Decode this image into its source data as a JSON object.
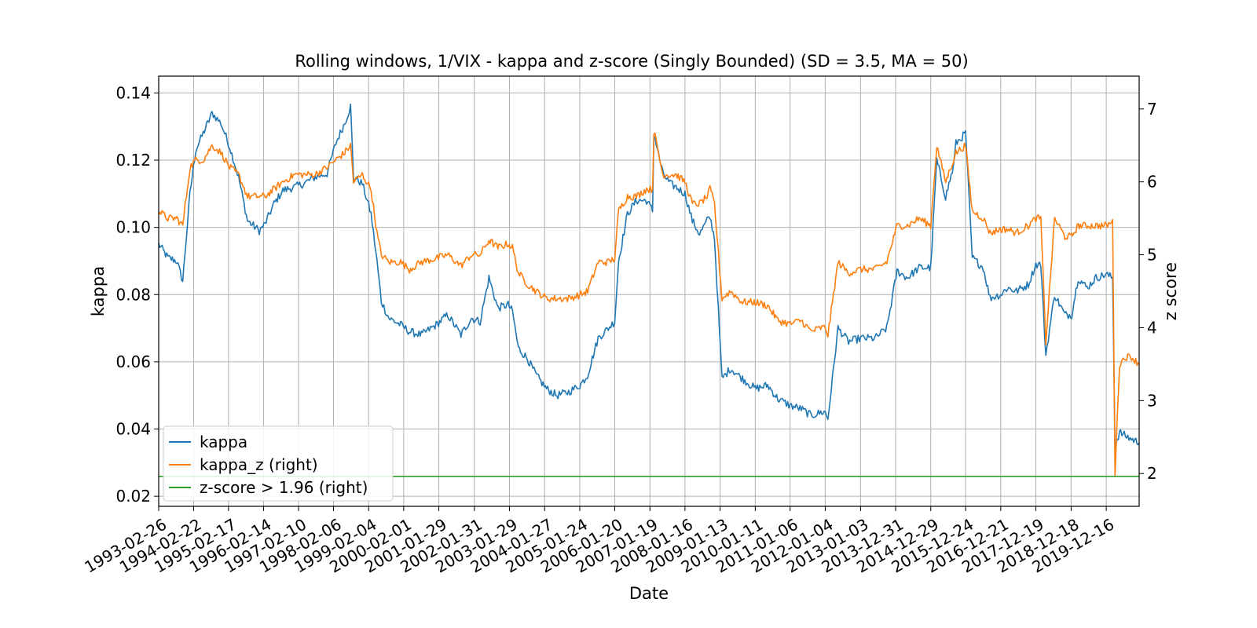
{
  "chart_data": {
    "type": "line",
    "title": "Rolling windows, 1/VIX - kappa and z-score (Singly Bounded) (SD = 3.5, MA = 50)",
    "xlabel": "Date",
    "ylabel": "kappa",
    "ylabel_right": "z score",
    "x_ticks": [
      "1993-02-26",
      "1994-02-22",
      "1995-02-17",
      "1996-02-14",
      "1997-02-10",
      "1998-02-06",
      "1999-02-04",
      "2000-02-01",
      "2001-01-29",
      "2002-01-31",
      "2003-01-29",
      "2004-01-27",
      "2005-01-24",
      "2006-01-20",
      "2007-01-19",
      "2008-01-16",
      "2009-01-13",
      "2010-01-11",
      "2011-01-06",
      "2012-01-04",
      "2013-01-03",
      "2013-12-31",
      "2014-12-29",
      "2015-12-24",
      "2016-12-21",
      "2017-12-19",
      "2018-12-18",
      "2019-12-16"
    ],
    "y_ticks_left": [
      "0.02",
      "0.04",
      "0.06",
      "0.08",
      "0.10",
      "0.12",
      "0.14"
    ],
    "y_ticks_right": [
      "2",
      "3",
      "4",
      "5",
      "6",
      "7"
    ],
    "ylim_left": [
      0.017,
      0.145
    ],
    "ylim_right": [
      1.55,
      7.45
    ],
    "x_range": [
      "1993-02-26",
      "2020-11-20"
    ],
    "grid": true,
    "legend_position": "lower-left",
    "series": [
      {
        "name": "kappa",
        "axis": "left",
        "color": "#1f77b4",
        "x": [
          "1993-02-26",
          "1993-06-01",
          "1993-09-01",
          "1993-11-01",
          "1994-01-15",
          "1994-03-15",
          "1994-06-01",
          "1994-09-01",
          "1994-12-01",
          "1995-03-01",
          "1995-06-01",
          "1995-09-01",
          "1996-01-01",
          "1996-03-01",
          "1996-06-01",
          "1996-09-01",
          "1997-01-01",
          "1997-04-01",
          "1997-08-01",
          "1997-12-01",
          "1998-03-01",
          "1998-06-01",
          "1998-08-01",
          "1998-09-01",
          "1998-12-01",
          "1999-03-01",
          "1999-05-01",
          "1999-06-15",
          "1999-09-01",
          "2000-01-01",
          "2000-04-01",
          "2000-08-01",
          "2001-01-01",
          "2001-05-01",
          "2001-09-15",
          "2002-01-01",
          "2002-04-01",
          "2002-07-01",
          "2002-10-01",
          "2003-01-15",
          "2003-03-01",
          "2003-05-01",
          "2003-08-01",
          "2003-11-01",
          "2004-02-15",
          "2004-06-01",
          "2004-10-01",
          "2005-01-24",
          "2005-04-15",
          "2005-08-01",
          "2005-11-15",
          "2006-01-20",
          "2006-03-01",
          "2006-06-01",
          "2006-09-01",
          "2006-12-15",
          "2007-02-15",
          "2007-03-01",
          "2007-06-01",
          "2007-08-15",
          "2007-10-15",
          "2008-01-16",
          "2008-04-01",
          "2008-06-15",
          "2008-09-01",
          "2008-10-01",
          "2008-11-15",
          "2009-02-01",
          "2009-05-01",
          "2009-09-01",
          "2010-01-11",
          "2010-05-20",
          "2010-09-01",
          "2011-01-06",
          "2011-05-01",
          "2011-08-10",
          "2011-12-01",
          "2012-01-04",
          "2012-02-01",
          "2012-05-15",
          "2012-09-01",
          "2013-01-03",
          "2013-06-01",
          "2013-10-01",
          "2014-01-15",
          "2014-05-01",
          "2014-09-01",
          "2014-12-29",
          "2015-03-01",
          "2015-06-01",
          "2015-08-20",
          "2015-09-15",
          "2015-12-24",
          "2016-03-01",
          "2016-06-24",
          "2016-09-01",
          "2016-12-21",
          "2017-03-01",
          "2017-06-01",
          "2017-10-01",
          "2017-12-19",
          "2018-02-08",
          "2018-04-01",
          "2018-07-01",
          "2018-10-15",
          "2018-12-24",
          "2019-03-01",
          "2019-06-01",
          "2019-09-01",
          "2019-12-16",
          "2020-02-20",
          "2020-03-16",
          "2020-05-01",
          "2020-07-01",
          "2020-09-01",
          "2020-11-20"
        ],
        "y": [
          0.095,
          0.091,
          0.09,
          0.084,
          0.11,
          0.123,
          0.128,
          0.134,
          0.131,
          0.124,
          0.115,
          0.102,
          0.099,
          0.101,
          0.107,
          0.111,
          0.112,
          0.113,
          0.115,
          0.116,
          0.125,
          0.131,
          0.136,
          0.115,
          0.113,
          0.104,
          0.09,
          0.078,
          0.073,
          0.071,
          0.069,
          0.068,
          0.071,
          0.074,
          0.068,
          0.073,
          0.072,
          0.085,
          0.076,
          0.077,
          0.075,
          0.064,
          0.061,
          0.056,
          0.052,
          0.05,
          0.051,
          0.053,
          0.056,
          0.067,
          0.07,
          0.072,
          0.09,
          0.104,
          0.108,
          0.108,
          0.105,
          0.128,
          0.116,
          0.113,
          0.112,
          0.11,
          0.102,
          0.098,
          0.102,
          0.103,
          0.097,
          0.055,
          0.058,
          0.055,
          0.052,
          0.053,
          0.049,
          0.047,
          0.046,
          0.044,
          0.045,
          0.045,
          0.043,
          0.07,
          0.066,
          0.067,
          0.067,
          0.07,
          0.087,
          0.085,
          0.088,
          0.088,
          0.12,
          0.109,
          0.118,
          0.125,
          0.128,
          0.091,
          0.088,
          0.079,
          0.08,
          0.082,
          0.081,
          0.083,
          0.089,
          0.089,
          0.062,
          0.08,
          0.074,
          0.074,
          0.085,
          0.082,
          0.085,
          0.086,
          0.085,
          0.035,
          0.039,
          0.038,
          0.037,
          0.036
        ]
      },
      {
        "name": "kappa_z (right)",
        "axis": "right",
        "color": "#ff7f0e",
        "x": [
          "1993-02-26",
          "1993-06-01",
          "1993-09-01",
          "1993-11-01",
          "1994-01-15",
          "1994-03-15",
          "1994-06-01",
          "1994-09-01",
          "1994-12-01",
          "1995-03-01",
          "1995-06-01",
          "1995-09-01",
          "1996-01-01",
          "1996-03-01",
          "1996-06-01",
          "1996-09-01",
          "1997-01-01",
          "1997-04-01",
          "1997-08-01",
          "1997-12-01",
          "1998-03-01",
          "1998-06-01",
          "1998-08-01",
          "1998-09-01",
          "1998-12-01",
          "1999-03-01",
          "1999-05-01",
          "1999-06-15",
          "1999-09-01",
          "2000-01-01",
          "2000-04-01",
          "2000-08-01",
          "2001-01-01",
          "2001-05-01",
          "2001-09-15",
          "2002-01-01",
          "2002-04-01",
          "2002-07-01",
          "2002-10-01",
          "2003-01-15",
          "2003-03-01",
          "2003-05-01",
          "2003-08-01",
          "2003-11-01",
          "2004-02-15",
          "2004-06-01",
          "2004-10-01",
          "2005-01-24",
          "2005-04-15",
          "2005-08-01",
          "2005-11-15",
          "2006-01-20",
          "2006-03-01",
          "2006-06-01",
          "2006-09-01",
          "2006-12-15",
          "2007-02-15",
          "2007-03-01",
          "2007-06-01",
          "2007-08-15",
          "2007-10-15",
          "2008-01-16",
          "2008-04-01",
          "2008-06-15",
          "2008-09-01",
          "2008-10-01",
          "2008-11-15",
          "2009-02-01",
          "2009-05-01",
          "2009-09-01",
          "2010-01-11",
          "2010-05-20",
          "2010-09-01",
          "2011-01-06",
          "2011-05-01",
          "2011-08-10",
          "2011-12-01",
          "2012-01-04",
          "2012-02-01",
          "2012-05-15",
          "2012-09-01",
          "2013-01-03",
          "2013-06-01",
          "2013-10-01",
          "2014-01-15",
          "2014-05-01",
          "2014-09-01",
          "2014-12-29",
          "2015-03-01",
          "2015-06-01",
          "2015-08-20",
          "2015-09-15",
          "2015-12-24",
          "2016-03-01",
          "2016-06-24",
          "2016-09-01",
          "2016-12-21",
          "2017-03-01",
          "2017-06-01",
          "2017-10-01",
          "2017-12-19",
          "2018-02-08",
          "2018-04-01",
          "2018-07-01",
          "2018-10-15",
          "2018-12-24",
          "2019-03-01",
          "2019-06-01",
          "2019-09-01",
          "2019-12-16",
          "2020-02-20",
          "2020-03-16",
          "2020-05-01",
          "2020-07-01",
          "2020-09-01",
          "2020-11-20"
        ],
        "y": [
          5.6,
          5.5,
          5.5,
          5.4,
          6.2,
          6.3,
          6.3,
          6.5,
          6.4,
          6.2,
          6.1,
          5.8,
          5.8,
          5.8,
          5.9,
          6.0,
          6.1,
          6.1,
          6.1,
          6.2,
          6.3,
          6.4,
          6.5,
          6.0,
          6.1,
          5.9,
          5.3,
          5.0,
          4.9,
          4.9,
          4.8,
          4.9,
          4.95,
          5.0,
          4.85,
          5.0,
          5.0,
          5.2,
          5.1,
          5.15,
          5.1,
          4.75,
          4.6,
          4.5,
          4.4,
          4.4,
          4.4,
          4.45,
          4.5,
          4.9,
          4.9,
          4.95,
          5.6,
          5.8,
          5.8,
          5.9,
          5.9,
          6.7,
          6.1,
          6.1,
          6.1,
          6.0,
          5.7,
          5.7,
          5.8,
          5.9,
          5.7,
          4.4,
          4.5,
          4.35,
          4.35,
          4.3,
          4.1,
          4.05,
          4.1,
          3.95,
          4.0,
          4.0,
          3.9,
          4.9,
          4.75,
          4.8,
          4.8,
          4.9,
          5.4,
          5.4,
          5.5,
          5.4,
          6.5,
          6.0,
          6.3,
          6.4,
          6.5,
          5.6,
          5.5,
          5.3,
          5.35,
          5.35,
          5.3,
          5.4,
          5.5,
          5.5,
          3.8,
          5.5,
          5.25,
          5.25,
          5.4,
          5.4,
          5.4,
          5.4,
          5.45,
          2.0,
          3.5,
          3.6,
          3.6,
          3.5
        ]
      },
      {
        "name": "z-score > 1.96 (right)",
        "axis": "right",
        "color": "#2ca02c",
        "x": [
          "1993-02-26",
          "2020-11-20"
        ],
        "y": [
          1.96,
          1.96
        ]
      }
    ]
  }
}
